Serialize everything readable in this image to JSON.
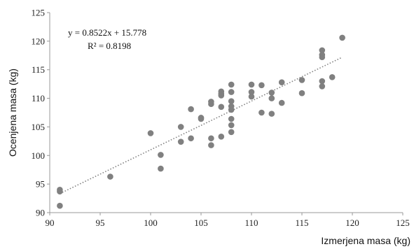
{
  "chart_data": {
    "type": "scatter",
    "xlabel": "Izmerjena masa (kg)",
    "ylabel": "Ocenjena masa (kg)",
    "xlim": [
      90,
      125
    ],
    "ylim": [
      90,
      125
    ],
    "x_ticks": [
      90,
      95,
      100,
      105,
      110,
      115,
      120,
      125
    ],
    "y_ticks": [
      90,
      95,
      100,
      105,
      110,
      115,
      120,
      125
    ],
    "grid": false,
    "colors": {
      "points": "#808080",
      "trendline": "#808080",
      "axis": "#999999"
    },
    "annotations": {
      "equation": "y = 0.8522x + 15.778",
      "r_squared": "R² = 0.8198"
    },
    "trendline": {
      "slope": 0.8522,
      "intercept": 15.778,
      "x_range": [
        91,
        119
      ]
    },
    "points": [
      [
        91,
        93.7
      ],
      [
        91,
        94.0
      ],
      [
        91,
        91.2
      ],
      [
        96,
        96.3
      ],
      [
        100,
        103.9
      ],
      [
        101,
        100.1
      ],
      [
        101,
        97.7
      ],
      [
        103,
        105.0
      ],
      [
        103,
        102.4
      ],
      [
        104,
        108.1
      ],
      [
        104,
        103.0
      ],
      [
        105,
        106.6
      ],
      [
        105,
        106.4
      ],
      [
        106,
        109.4
      ],
      [
        106,
        109.0
      ],
      [
        106,
        103.0
      ],
      [
        106,
        101.8
      ],
      [
        107,
        111.2
      ],
      [
        107,
        110.8
      ],
      [
        107,
        110.5
      ],
      [
        107,
        108.5
      ],
      [
        107,
        103.3
      ],
      [
        108,
        112.4
      ],
      [
        108,
        111.1
      ],
      [
        108,
        109.5
      ],
      [
        108,
        108.6
      ],
      [
        108,
        108.0
      ],
      [
        108,
        106.4
      ],
      [
        108,
        105.3
      ],
      [
        108,
        104.1
      ],
      [
        110,
        112.4
      ],
      [
        110,
        111.1
      ],
      [
        110,
        110.3
      ],
      [
        111,
        112.3
      ],
      [
        111,
        107.5
      ],
      [
        112,
        111.0
      ],
      [
        112,
        110.0
      ],
      [
        112,
        107.3
      ],
      [
        113,
        112.8
      ],
      [
        113,
        109.2
      ],
      [
        115,
        113.2
      ],
      [
        115,
        110.9
      ],
      [
        117,
        118.4
      ],
      [
        117,
        117.6
      ],
      [
        117,
        117.2
      ],
      [
        117,
        113.0
      ],
      [
        117,
        112.1
      ],
      [
        118,
        113.7
      ],
      [
        119,
        120.6
      ]
    ]
  }
}
